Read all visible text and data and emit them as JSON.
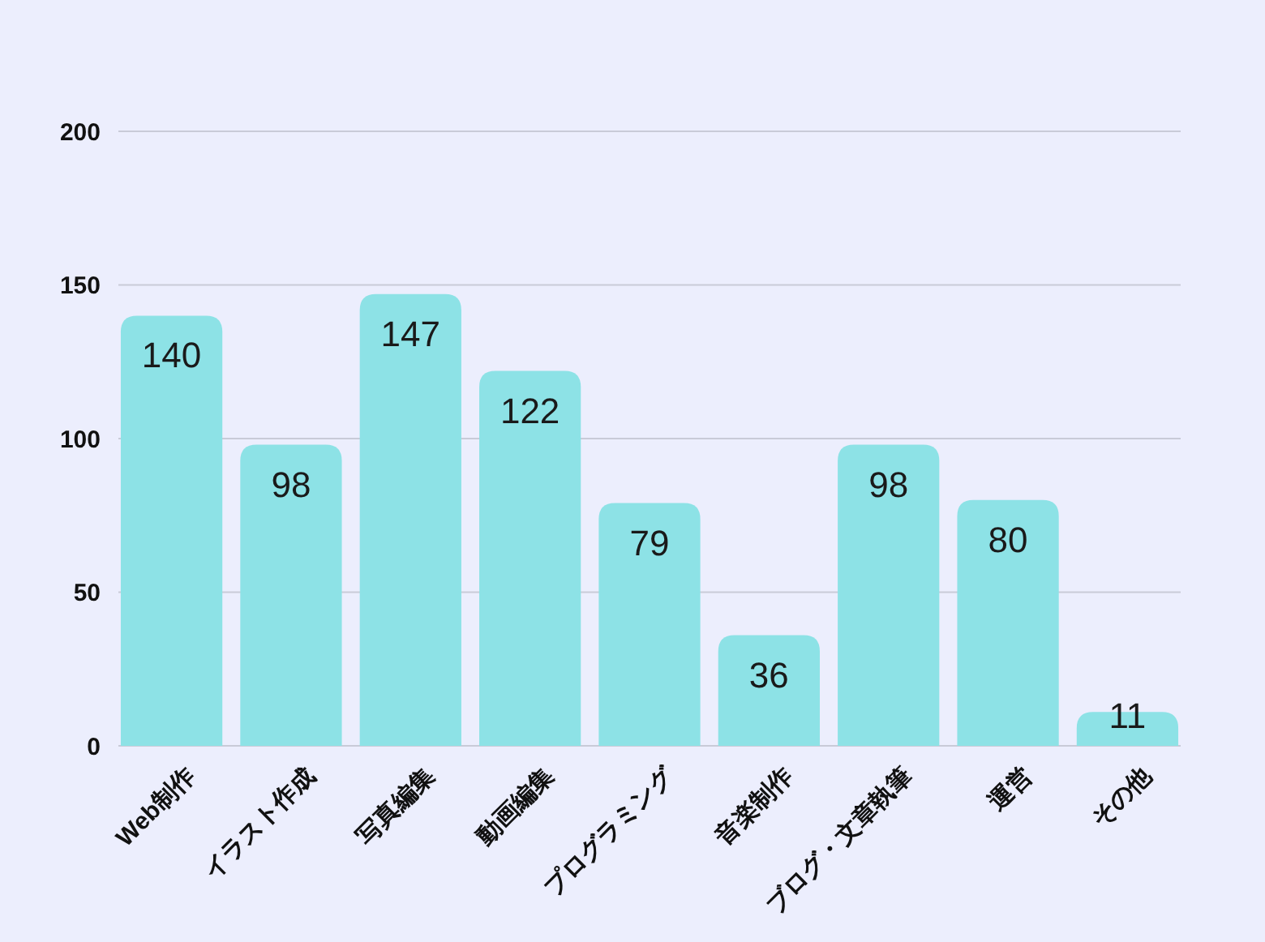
{
  "chart_data": {
    "type": "bar",
    "categories": [
      "Web制作",
      "イラスト作成",
      "写真編集",
      "動画編集",
      "プログラミング",
      "音楽制作",
      "ブログ・文章執筆",
      "運営",
      "その他"
    ],
    "values": [
      140,
      98,
      147,
      122,
      79,
      36,
      98,
      80,
      11
    ],
    "color": "#8de2e6",
    "ylim": [
      0,
      200
    ],
    "yticks": [
      0,
      50,
      100,
      150,
      200
    ],
    "grid": "y",
    "data_labels": true
  }
}
